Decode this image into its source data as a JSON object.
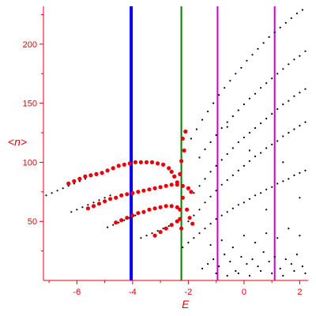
{
  "chart_data": {
    "type": "scatter",
    "title": "",
    "xlabel": "E",
    "ylabel": "<n>",
    "xlim": [
      -7.2,
      2.3
    ],
    "ylim": [
      0,
      232
    ],
    "x_ticks": [
      -6,
      -4,
      -2,
      0,
      2
    ],
    "y_ticks": [
      50,
      100,
      150,
      200
    ],
    "x_tick_labels": [
      "-6",
      "-4",
      "-2",
      "0",
      "2"
    ],
    "y_tick_labels": [
      "50",
      "100",
      "150",
      "200"
    ],
    "grid": false,
    "colors": {
      "axis": "#e8000b",
      "points_black": "#000000",
      "points_red": "#e8000b",
      "line_blue": "#0000ff",
      "line_green": "#008000",
      "line_magenta": "#cc00cc"
    },
    "vertical_lines": [
      {
        "x": -4.05,
        "color": "#0000ff"
      },
      {
        "x": -2.25,
        "color": "#008000"
      },
      {
        "x": -0.95,
        "color": "#cc00cc"
      },
      {
        "x": 1.1,
        "color": "#cc00cc"
      }
    ],
    "series": [
      {
        "color": "#000000",
        "points": [
          [
            -7.1,
            72
          ],
          [
            -6.9,
            74
          ],
          [
            -6.7,
            76
          ],
          [
            -6.5,
            78
          ],
          [
            -6.3,
            80
          ],
          [
            -6.1,
            82
          ],
          [
            -5.9,
            84
          ],
          [
            -5.7,
            86
          ],
          [
            -5.5,
            88
          ],
          [
            -6.2,
            58
          ],
          [
            -6.0,
            60
          ],
          [
            -5.8,
            62
          ],
          [
            -5.6,
            64
          ],
          [
            -5.4,
            66
          ],
          [
            -5.2,
            68
          ],
          [
            -5.0,
            70
          ],
          [
            -4.8,
            72
          ],
          [
            -4.9,
            45
          ],
          [
            -4.7,
            47
          ],
          [
            -4.5,
            49
          ],
          [
            -4.3,
            51
          ],
          [
            -4.1,
            53
          ],
          [
            -3.9,
            55
          ],
          [
            -3.7,
            36
          ],
          [
            -3.5,
            38
          ],
          [
            -3.3,
            40
          ],
          [
            -3.1,
            42
          ],
          [
            -2.9,
            44
          ],
          [
            -2.7,
            46
          ],
          [
            -2.2,
            28
          ],
          [
            -2.0,
            32
          ],
          [
            -1.8,
            36
          ],
          [
            -1.6,
            40
          ],
          [
            -1.4,
            44
          ],
          [
            -1.2,
            48
          ],
          [
            -1.0,
            52
          ],
          [
            -0.8,
            55
          ],
          [
            -0.6,
            58
          ],
          [
            -0.4,
            61
          ],
          [
            -0.2,
            64
          ],
          [
            0.0,
            66
          ],
          [
            0.2,
            69
          ],
          [
            0.4,
            72
          ],
          [
            0.6,
            74
          ],
          [
            0.8,
            77
          ],
          [
            1.0,
            79
          ],
          [
            1.2,
            82
          ],
          [
            1.4,
            84
          ],
          [
            1.6,
            86
          ],
          [
            1.8,
            89
          ],
          [
            2.0,
            91
          ],
          [
            2.2,
            93
          ],
          [
            -2.0,
            50
          ],
          [
            -1.8,
            55
          ],
          [
            -1.6,
            60
          ],
          [
            -1.4,
            66
          ],
          [
            -1.2,
            71
          ],
          [
            -1.0,
            76
          ],
          [
            -0.8,
            81
          ],
          [
            -0.6,
            85
          ],
          [
            -0.4,
            89
          ],
          [
            -0.2,
            93
          ],
          [
            0.0,
            97
          ],
          [
            0.2,
            101
          ],
          [
            0.4,
            105
          ],
          [
            0.6,
            108
          ],
          [
            0.8,
            112
          ],
          [
            1.0,
            115
          ],
          [
            1.2,
            118
          ],
          [
            1.4,
            122
          ],
          [
            1.6,
            125
          ],
          [
            1.8,
            128
          ],
          [
            2.0,
            131
          ],
          [
            2.2,
            134
          ],
          [
            -1.8,
            74
          ],
          [
            -1.6,
            80
          ],
          [
            -1.4,
            86
          ],
          [
            -1.2,
            92
          ],
          [
            -1.0,
            97
          ],
          [
            -0.8,
            102
          ],
          [
            -0.6,
            107
          ],
          [
            -0.4,
            112
          ],
          [
            -0.2,
            117
          ],
          [
            0.0,
            121
          ],
          [
            0.2,
            125
          ],
          [
            0.4,
            129
          ],
          [
            0.6,
            133
          ],
          [
            0.8,
            137
          ],
          [
            1.0,
            141
          ],
          [
            1.2,
            145
          ],
          [
            1.4,
            149
          ],
          [
            1.6,
            152
          ],
          [
            1.8,
            156
          ],
          [
            2.0,
            159
          ],
          [
            2.2,
            162
          ],
          [
            -1.6,
            104
          ],
          [
            -1.4,
            111
          ],
          [
            -1.2,
            117
          ],
          [
            -1.0,
            123
          ],
          [
            -0.8,
            129
          ],
          [
            -0.6,
            134
          ],
          [
            -0.4,
            139
          ],
          [
            -0.2,
            144
          ],
          [
            0.0,
            149
          ],
          [
            0.2,
            154
          ],
          [
            0.4,
            158
          ],
          [
            0.6,
            163
          ],
          [
            0.8,
            167
          ],
          [
            1.0,
            171
          ],
          [
            1.2,
            175
          ],
          [
            1.4,
            179
          ],
          [
            1.6,
            183
          ],
          [
            1.8,
            187
          ],
          [
            2.0,
            190
          ],
          [
            2.2,
            194
          ],
          [
            -1.9,
            120
          ],
          [
            -1.7,
            128
          ],
          [
            -1.5,
            136
          ],
          [
            -1.3,
            143
          ],
          [
            -1.1,
            150
          ],
          [
            -0.9,
            157
          ],
          [
            -0.7,
            163
          ],
          [
            -0.5,
            169
          ],
          [
            -0.3,
            175
          ],
          [
            -0.1,
            180
          ],
          [
            0.1,
            186
          ],
          [
            0.3,
            191
          ],
          [
            0.5,
            196
          ],
          [
            0.7,
            201
          ],
          [
            0.9,
            206
          ],
          [
            1.1,
            210
          ],
          [
            1.3,
            214
          ],
          [
            1.5,
            218
          ],
          [
            1.7,
            222
          ],
          [
            1.9,
            226
          ],
          [
            2.1,
            229
          ],
          [
            -1.5,
            10
          ],
          [
            -1.3,
            14
          ],
          [
            -1.1,
            18
          ],
          [
            -0.9,
            12
          ],
          [
            -0.7,
            22
          ],
          [
            -0.5,
            16
          ],
          [
            -0.3,
            8
          ],
          [
            -0.1,
            20
          ],
          [
            0.1,
            14
          ],
          [
            0.3,
            18
          ],
          [
            0.5,
            12
          ],
          [
            0.7,
            24
          ],
          [
            0.9,
            16
          ],
          [
            1.1,
            20
          ],
          [
            1.3,
            10
          ],
          [
            1.5,
            18
          ],
          [
            1.7,
            14
          ],
          [
            1.9,
            22
          ],
          [
            2.1,
            12
          ],
          [
            -1.2,
            30
          ],
          [
            -0.8,
            34
          ],
          [
            -0.4,
            28
          ],
          [
            0.0,
            38
          ],
          [
            0.4,
            32
          ],
          [
            0.8,
            40
          ],
          [
            1.2,
            36
          ],
          [
            1.6,
            44
          ],
          [
            2.0,
            38
          ],
          [
            -1.0,
            6
          ],
          [
            -0.6,
            4
          ],
          [
            -0.2,
            6
          ],
          [
            0.2,
            4
          ],
          [
            0.6,
            8
          ],
          [
            1.0,
            6
          ],
          [
            1.4,
            4
          ],
          [
            1.8,
            8
          ],
          [
            2.2,
            6
          ],
          [
            -0.6,
            130
          ],
          [
            0.2,
            110
          ],
          [
            1.4,
            100
          ],
          [
            2.0,
            70
          ],
          [
            0.8,
            60
          ]
        ]
      },
      {
        "color": "#e8000b",
        "points": [
          [
            -6.3,
            82
          ],
          [
            -6.1,
            84
          ],
          [
            -5.9,
            86
          ],
          [
            -5.7,
            88
          ],
          [
            -5.5,
            89
          ],
          [
            -5.3,
            90
          ],
          [
            -5.1,
            91
          ],
          [
            -4.9,
            93
          ],
          [
            -4.7,
            95
          ],
          [
            -4.5,
            97
          ],
          [
            -4.3,
            98
          ],
          [
            -4.1,
            99
          ],
          [
            -3.9,
            100
          ],
          [
            -3.7,
            100
          ],
          [
            -3.5,
            100
          ],
          [
            -3.3,
            100
          ],
          [
            -3.1,
            99
          ],
          [
            -2.9,
            98
          ],
          [
            -2.7,
            95
          ],
          [
            -2.6,
            92
          ],
          [
            -2.5,
            88
          ],
          [
            -2.4,
            83
          ],
          [
            -5.6,
            61
          ],
          [
            -5.4,
            63
          ],
          [
            -5.2,
            65
          ],
          [
            -5.0,
            67
          ],
          [
            -4.8,
            69
          ],
          [
            -4.6,
            70
          ],
          [
            -4.4,
            72
          ],
          [
            -4.2,
            73
          ],
          [
            -4.0,
            74
          ],
          [
            -3.8,
            75
          ],
          [
            -3.6,
            76
          ],
          [
            -3.4,
            77
          ],
          [
            -3.2,
            78
          ],
          [
            -3.0,
            79
          ],
          [
            -2.8,
            80
          ],
          [
            -2.6,
            81
          ],
          [
            -2.4,
            81
          ],
          [
            -2.2,
            80
          ],
          [
            -2.0,
            78
          ],
          [
            -1.9,
            75
          ],
          [
            -4.6,
            49
          ],
          [
            -4.4,
            51
          ],
          [
            -4.2,
            53
          ],
          [
            -4.0,
            55
          ],
          [
            -3.8,
            57
          ],
          [
            -3.6,
            58
          ],
          [
            -3.4,
            60
          ],
          [
            -3.2,
            61
          ],
          [
            -3.0,
            62
          ],
          [
            -2.8,
            63
          ],
          [
            -2.6,
            63
          ],
          [
            -2.4,
            62
          ],
          [
            -2.3,
            60
          ],
          [
            -3.2,
            38
          ],
          [
            -3.0,
            41
          ],
          [
            -2.8,
            44
          ],
          [
            -2.6,
            47
          ],
          [
            -2.4,
            50
          ],
          [
            -2.3,
            52
          ],
          [
            -2.25,
            101
          ],
          [
            -2.25,
            44
          ],
          [
            -2.2,
            120
          ],
          [
            -2.1,
            126
          ],
          [
            -2.15,
            110
          ],
          [
            -2.3,
            90
          ],
          [
            -2.2,
            70
          ],
          [
            -2.05,
            60
          ],
          [
            -1.95,
            53
          ],
          [
            -1.85,
            48
          ]
        ]
      }
    ]
  }
}
